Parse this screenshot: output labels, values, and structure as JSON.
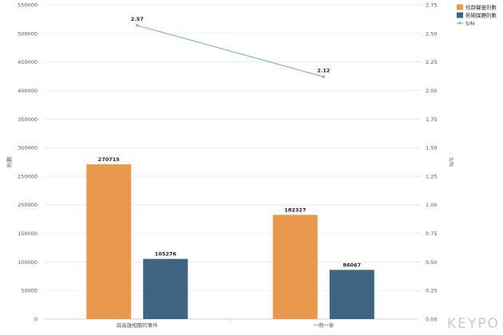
{
  "chart_data": {
    "type": "bar",
    "title": "",
    "categories": [
      "與高雄相關的事件",
      "一例一休"
    ],
    "series": [
      {
        "name": "社群聲量則數",
        "type": "bar",
        "axis": "left",
        "color": "#e8994d",
        "values": [
          270715,
          182327
        ]
      },
      {
        "name": "新聞媒體則數",
        "type": "bar",
        "axis": "left",
        "color": "#3e6683",
        "values": [
          105276,
          86067
        ]
      },
      {
        "name": "S/N",
        "type": "line",
        "axis": "right",
        "color": "#7fbfa8",
        "values": [
          2.57,
          2.12
        ],
        "labels": [
          "2.57",
          "2.12"
        ]
      }
    ],
    "bar_labels": [
      [
        "270715",
        "182327"
      ],
      [
        "105276",
        "86067"
      ]
    ],
    "ylabel": "則數",
    "ylabel_right": "S/N",
    "ylim": [
      0,
      550000
    ],
    "ylim_right": [
      0,
      2.75
    ],
    "yticks": [
      "0",
      "50000",
      "100000",
      "150000",
      "200000",
      "250000",
      "300000",
      "350000",
      "400000",
      "450000",
      "500000",
      "550000"
    ],
    "yticks_right": [
      "0.00",
      "0.25",
      "0.50",
      "0.75",
      "1.00",
      "1.25",
      "1.50",
      "1.75",
      "2.00",
      "2.25",
      "2.50",
      "2.75"
    ],
    "grid": true,
    "legend_position": "top-right"
  },
  "watermark": {
    "text": "KEYPO"
  }
}
